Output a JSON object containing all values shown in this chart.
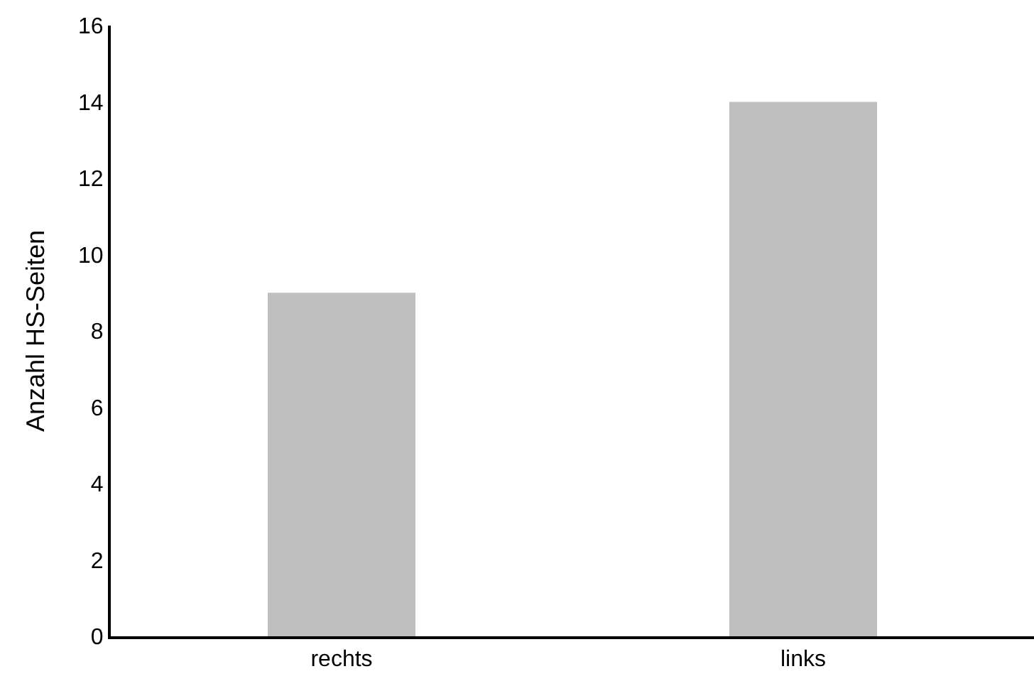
{
  "chart_data": {
    "type": "bar",
    "ylabel": "Anzahl HS-Seiten",
    "categories": [
      "rechts",
      "links"
    ],
    "values": [
      9,
      14
    ],
    "color": "#bfbfbf",
    "ylim": [
      0,
      16
    ],
    "yticks": [
      0,
      2,
      4,
      6,
      8,
      10,
      12,
      14,
      16
    ],
    "grid": false,
    "legend": false
  }
}
